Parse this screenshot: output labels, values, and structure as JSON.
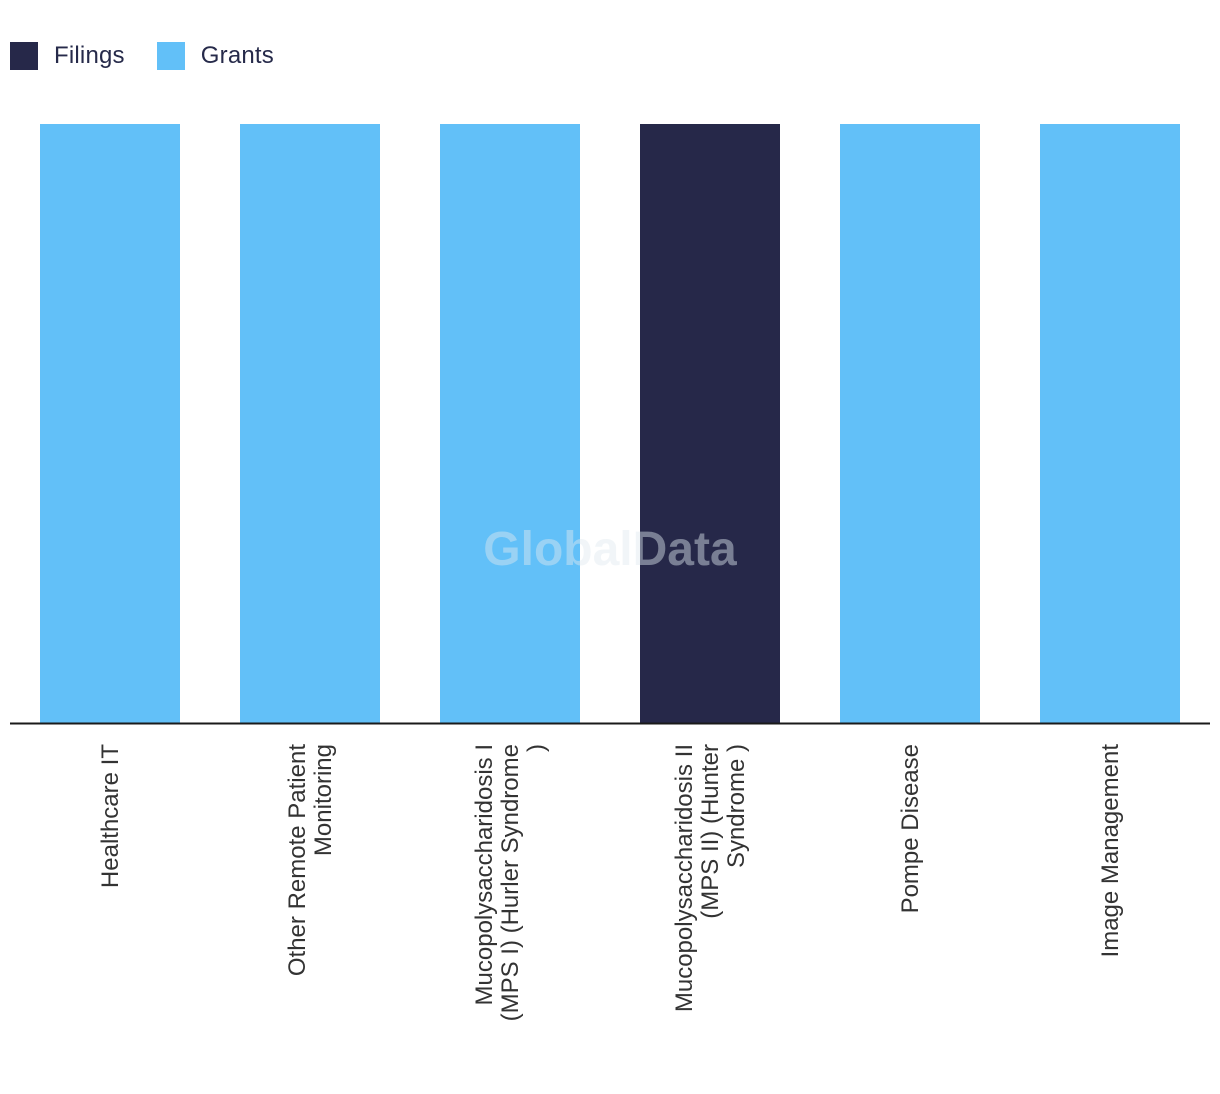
{
  "chart_data": {
    "type": "bar",
    "categories": [
      "Healthcare IT",
      "Other Remote Patient Monitoring",
      "Mucopolysaccharidosis I (MPS I) (Hurler Syndrome )",
      "Mucopolysaccharidosis II (MPS II) (Hunter Syndrome )",
      "Pompe Disease",
      "Image Management"
    ],
    "category_label_lines": [
      [
        "Healthcare IT"
      ],
      [
        "Other Remote Patient",
        "Monitoring"
      ],
      [
        "Mucopolysaccharidosis I",
        "(MPS I) (Hurler Syndrome",
        ")"
      ],
      [
        "Mucopolysaccharidosis II",
        "(MPS II) (Hunter",
        "Syndrome )"
      ],
      [
        "Pompe Disease"
      ],
      [
        "Image Management"
      ]
    ],
    "series": [
      {
        "name": "Filings",
        "color": "#262849",
        "values": [
          0,
          0,
          0,
          1,
          0,
          0
        ]
      },
      {
        "name": "Grants",
        "color": "#62c0f8",
        "values": [
          1,
          1,
          1,
          0,
          1,
          1
        ]
      }
    ],
    "stacked": true,
    "ylim": [
      0,
      1
    ],
    "grid": false,
    "legend_position": "top-left",
    "watermark": "GlobalData",
    "title": "",
    "xlabel": "",
    "ylabel": ""
  }
}
